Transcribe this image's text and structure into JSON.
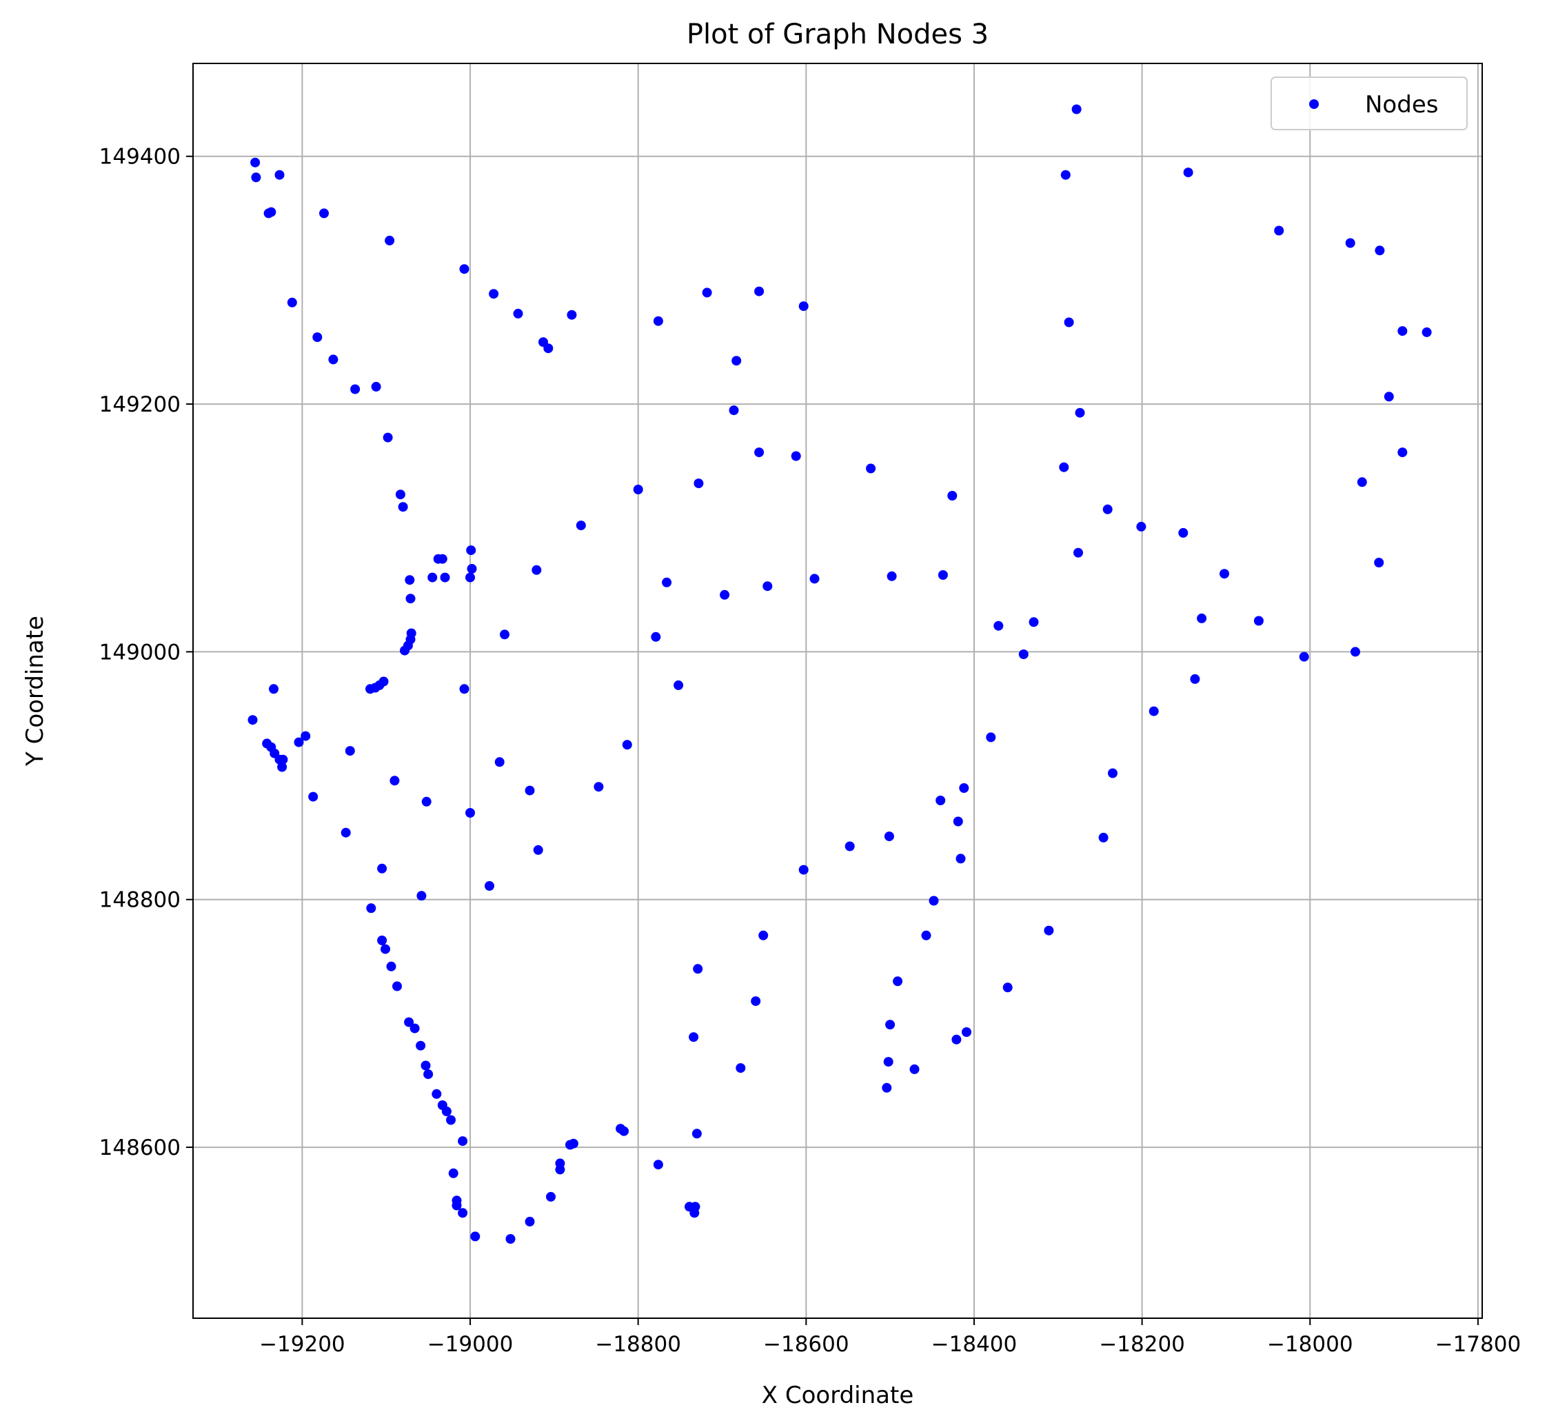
{
  "chart_data": {
    "type": "scatter",
    "title": "Plot of Graph Nodes 3",
    "xlabel": "X Coordinate",
    "ylabel": "Y Coordinate",
    "xlim": [
      -19330,
      -17795
    ],
    "ylim": [
      148462,
      149475
    ],
    "xticks": [
      -19200,
      -19000,
      -18800,
      -18600,
      -18400,
      -18200,
      -18000,
      -17800
    ],
    "yticks": [
      148600,
      148800,
      149000,
      149200,
      149400
    ],
    "grid": true,
    "legend": {
      "placement": "top-right",
      "entries": [
        "Nodes"
      ]
    },
    "colors": {
      "marker": "#0000ff",
      "grid": "#b0b0b0",
      "axes": "#000000"
    },
    "series": [
      {
        "name": "Nodes",
        "points": [
          [
            -19256,
            149395
          ],
          [
            -19255,
            149383
          ],
          [
            -19227,
            149385
          ],
          [
            -19240,
            149354
          ],
          [
            -19237,
            149355
          ],
          [
            -19174,
            149354
          ],
          [
            -19096,
            149332
          ],
          [
            -19212,
            149282
          ],
          [
            -19182,
            149254
          ],
          [
            -19163,
            149236
          ],
          [
            -19137,
            149212
          ],
          [
            -19112,
            149214
          ],
          [
            -19098,
            149173
          ],
          [
            -19083,
            149127
          ],
          [
            -19080,
            149117
          ],
          [
            -19007,
            149309
          ],
          [
            -18972,
            149289
          ],
          [
            -18943,
            149273
          ],
          [
            -18913,
            149250
          ],
          [
            -18907,
            149245
          ],
          [
            -18879,
            149272
          ],
          [
            -18776,
            149267
          ],
          [
            -18718,
            149290
          ],
          [
            -18656,
            149291
          ],
          [
            -18603,
            149279
          ],
          [
            -18683,
            149235
          ],
          [
            -18686,
            149195
          ],
          [
            -18656,
            149161
          ],
          [
            -18612,
            149158
          ],
          [
            -18278,
            149438
          ],
          [
            -18291,
            149385
          ],
          [
            -18145,
            149387
          ],
          [
            -18037,
            149340
          ],
          [
            -17952,
            149330
          ],
          [
            -17917,
            149324
          ],
          [
            -17890,
            149259
          ],
          [
            -17861,
            149258
          ],
          [
            -18287,
            149266
          ],
          [
            -18274,
            149193
          ],
          [
            -18293,
            149149
          ],
          [
            -18523,
            149148
          ],
          [
            -18426,
            149126
          ],
          [
            -18241,
            149115
          ],
          [
            -18201,
            149101
          ],
          [
            -18151,
            149096
          ],
          [
            -17906,
            149206
          ],
          [
            -17890,
            149161
          ],
          [
            -17938,
            149137
          ],
          [
            -17918,
            149072
          ],
          [
            -18102,
            149063
          ],
          [
            -18129,
            149027
          ],
          [
            -18061,
            149025
          ],
          [
            -18007,
            148996
          ],
          [
            -17946,
            149000
          ],
          [
            -18276,
            149080
          ],
          [
            -18371,
            149021
          ],
          [
            -18329,
            149024
          ],
          [
            -18341,
            148998
          ],
          [
            -18437,
            149062
          ],
          [
            -18498,
            149061
          ],
          [
            -18590,
            149059
          ],
          [
            -18646,
            149053
          ],
          [
            -18697,
            149046
          ],
          [
            -18766,
            149056
          ],
          [
            -18800,
            149131
          ],
          [
            -18728,
            149136
          ],
          [
            -18868,
            149102
          ],
          [
            -18921,
            149066
          ],
          [
            -18999,
            149082
          ],
          [
            -18998,
            149067
          ],
          [
            -19000,
            149060
          ],
          [
            -19030,
            149060
          ],
          [
            -19045,
            149060
          ],
          [
            -19038,
            149075
          ],
          [
            -19033,
            149075
          ],
          [
            -19072,
            149058
          ],
          [
            -19071,
            149043
          ],
          [
            -19070,
            149015
          ],
          [
            -19071,
            149010
          ],
          [
            -19074,
            149005
          ],
          [
            -19078,
            149001
          ],
          [
            -18959,
            149014
          ],
          [
            -18779,
            149012
          ],
          [
            -18752,
            148973
          ],
          [
            -19234,
            148970
          ],
          [
            -19103,
            148976
          ],
          [
            -19108,
            148973
          ],
          [
            -19113,
            148971
          ],
          [
            -19119,
            148970
          ],
          [
            -19007,
            148970
          ],
          [
            -19259,
            148945
          ],
          [
            -19242,
            148926
          ],
          [
            -19237,
            148923
          ],
          [
            -19233,
            148918
          ],
          [
            -19227,
            148913
          ],
          [
            -19224,
            148907
          ],
          [
            -19223,
            148913
          ],
          [
            -19204,
            148927
          ],
          [
            -19196,
            148932
          ],
          [
            -19143,
            148920
          ],
          [
            -19090,
            148896
          ],
          [
            -19187,
            148883
          ],
          [
            -19052,
            148879
          ],
          [
            -19000,
            148870
          ],
          [
            -18965,
            148911
          ],
          [
            -18929,
            148888
          ],
          [
            -18847,
            148891
          ],
          [
            -18813,
            148925
          ],
          [
            -19148,
            148854
          ],
          [
            -18919,
            148840
          ],
          [
            -19105,
            148825
          ],
          [
            -18977,
            148811
          ],
          [
            -19058,
            148803
          ],
          [
            -19118,
            148793
          ],
          [
            -18603,
            148824
          ],
          [
            -18548,
            148843
          ],
          [
            -18501,
            148851
          ],
          [
            -18440,
            148880
          ],
          [
            -18419,
            148863
          ],
          [
            -18412,
            148890
          ],
          [
            -18416,
            148833
          ],
          [
            -18235,
            148902
          ],
          [
            -18246,
            148850
          ],
          [
            -18186,
            148952
          ],
          [
            -18137,
            148978
          ],
          [
            -18380,
            148931
          ],
          [
            -18448,
            148799
          ],
          [
            -18457,
            148771
          ],
          [
            -18311,
            148775
          ],
          [
            -18360,
            148729
          ],
          [
            -18491,
            148734
          ],
          [
            -18500,
            148699
          ],
          [
            -18502,
            148669
          ],
          [
            -18471,
            148663
          ],
          [
            -18504,
            148648
          ],
          [
            -18421,
            148687
          ],
          [
            -18409,
            148693
          ],
          [
            -18651,
            148771
          ],
          [
            -18729,
            148744
          ],
          [
            -18660,
            148718
          ],
          [
            -18734,
            148689
          ],
          [
            -18678,
            148664
          ],
          [
            -19105,
            148767
          ],
          [
            -19101,
            148760
          ],
          [
            -19094,
            148746
          ],
          [
            -19087,
            148730
          ],
          [
            -19073,
            148701
          ],
          [
            -19066,
            148696
          ],
          [
            -19059,
            148682
          ],
          [
            -19053,
            148666
          ],
          [
            -19050,
            148659
          ],
          [
            -19040,
            148643
          ],
          [
            -19033,
            148634
          ],
          [
            -19028,
            148629
          ],
          [
            -19023,
            148622
          ],
          [
            -19009,
            148605
          ],
          [
            -19020,
            148579
          ],
          [
            -19016,
            148557
          ],
          [
            -19016,
            148553
          ],
          [
            -19009,
            148547
          ],
          [
            -18994,
            148528
          ],
          [
            -18952,
            148526
          ],
          [
            -18929,
            148540
          ],
          [
            -18904,
            148560
          ],
          [
            -18893,
            148582
          ],
          [
            -18893,
            148587
          ],
          [
            -18881,
            148602
          ],
          [
            -18877,
            148603
          ],
          [
            -18821,
            148615
          ],
          [
            -18817,
            148613
          ],
          [
            -18776,
            148586
          ],
          [
            -18730,
            148611
          ],
          [
            -18739,
            148552
          ],
          [
            -18732,
            148552
          ],
          [
            -18733,
            148547
          ]
        ]
      }
    ]
  }
}
